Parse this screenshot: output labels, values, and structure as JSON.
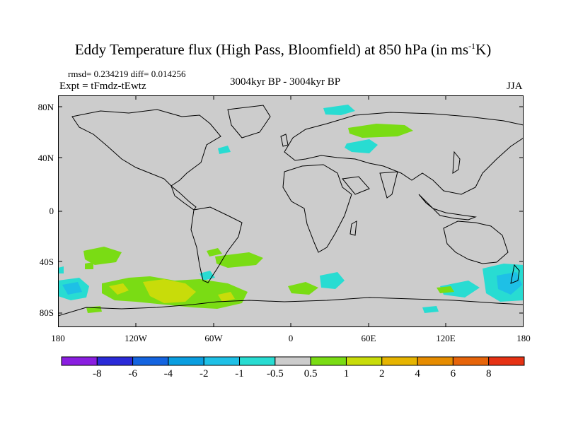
{
  "title": {
    "main": "Eddy Temperature flux (High Pass, Bloomfield) at 850 hPa (in ms",
    "sup": "-1",
    "tail": "K)"
  },
  "stats": "rmsd= 0.234219 diff= 0.014256",
  "expt": "Expt = tFmdz-tEwtz",
  "period": "3004kyr BP - 3004kyr BP",
  "season": "JJA",
  "lat_labels": [
    "80N",
    "40N",
    "0",
    "40S",
    "80S"
  ],
  "lon_labels": [
    "180",
    "120W",
    "60W",
    "0",
    "60E",
    "120E",
    "180"
  ],
  "colorbar": {
    "colors": [
      "#8a1ee0",
      "#2a2ad8",
      "#1464e0",
      "#0a9ee0",
      "#1ec0e6",
      "#28dcd2",
      "#cccccc",
      "#7adc14",
      "#c8dc0a",
      "#e6b400",
      "#e68c00",
      "#e6640a",
      "#e63214"
    ],
    "labels": [
      "-8",
      "-6",
      "-4",
      "-2",
      "-1",
      "-0.5",
      "0.5",
      "1",
      "2",
      "4",
      "6",
      "8"
    ]
  },
  "colors": {
    "background": "#cccccc",
    "coast": "#000000"
  }
}
